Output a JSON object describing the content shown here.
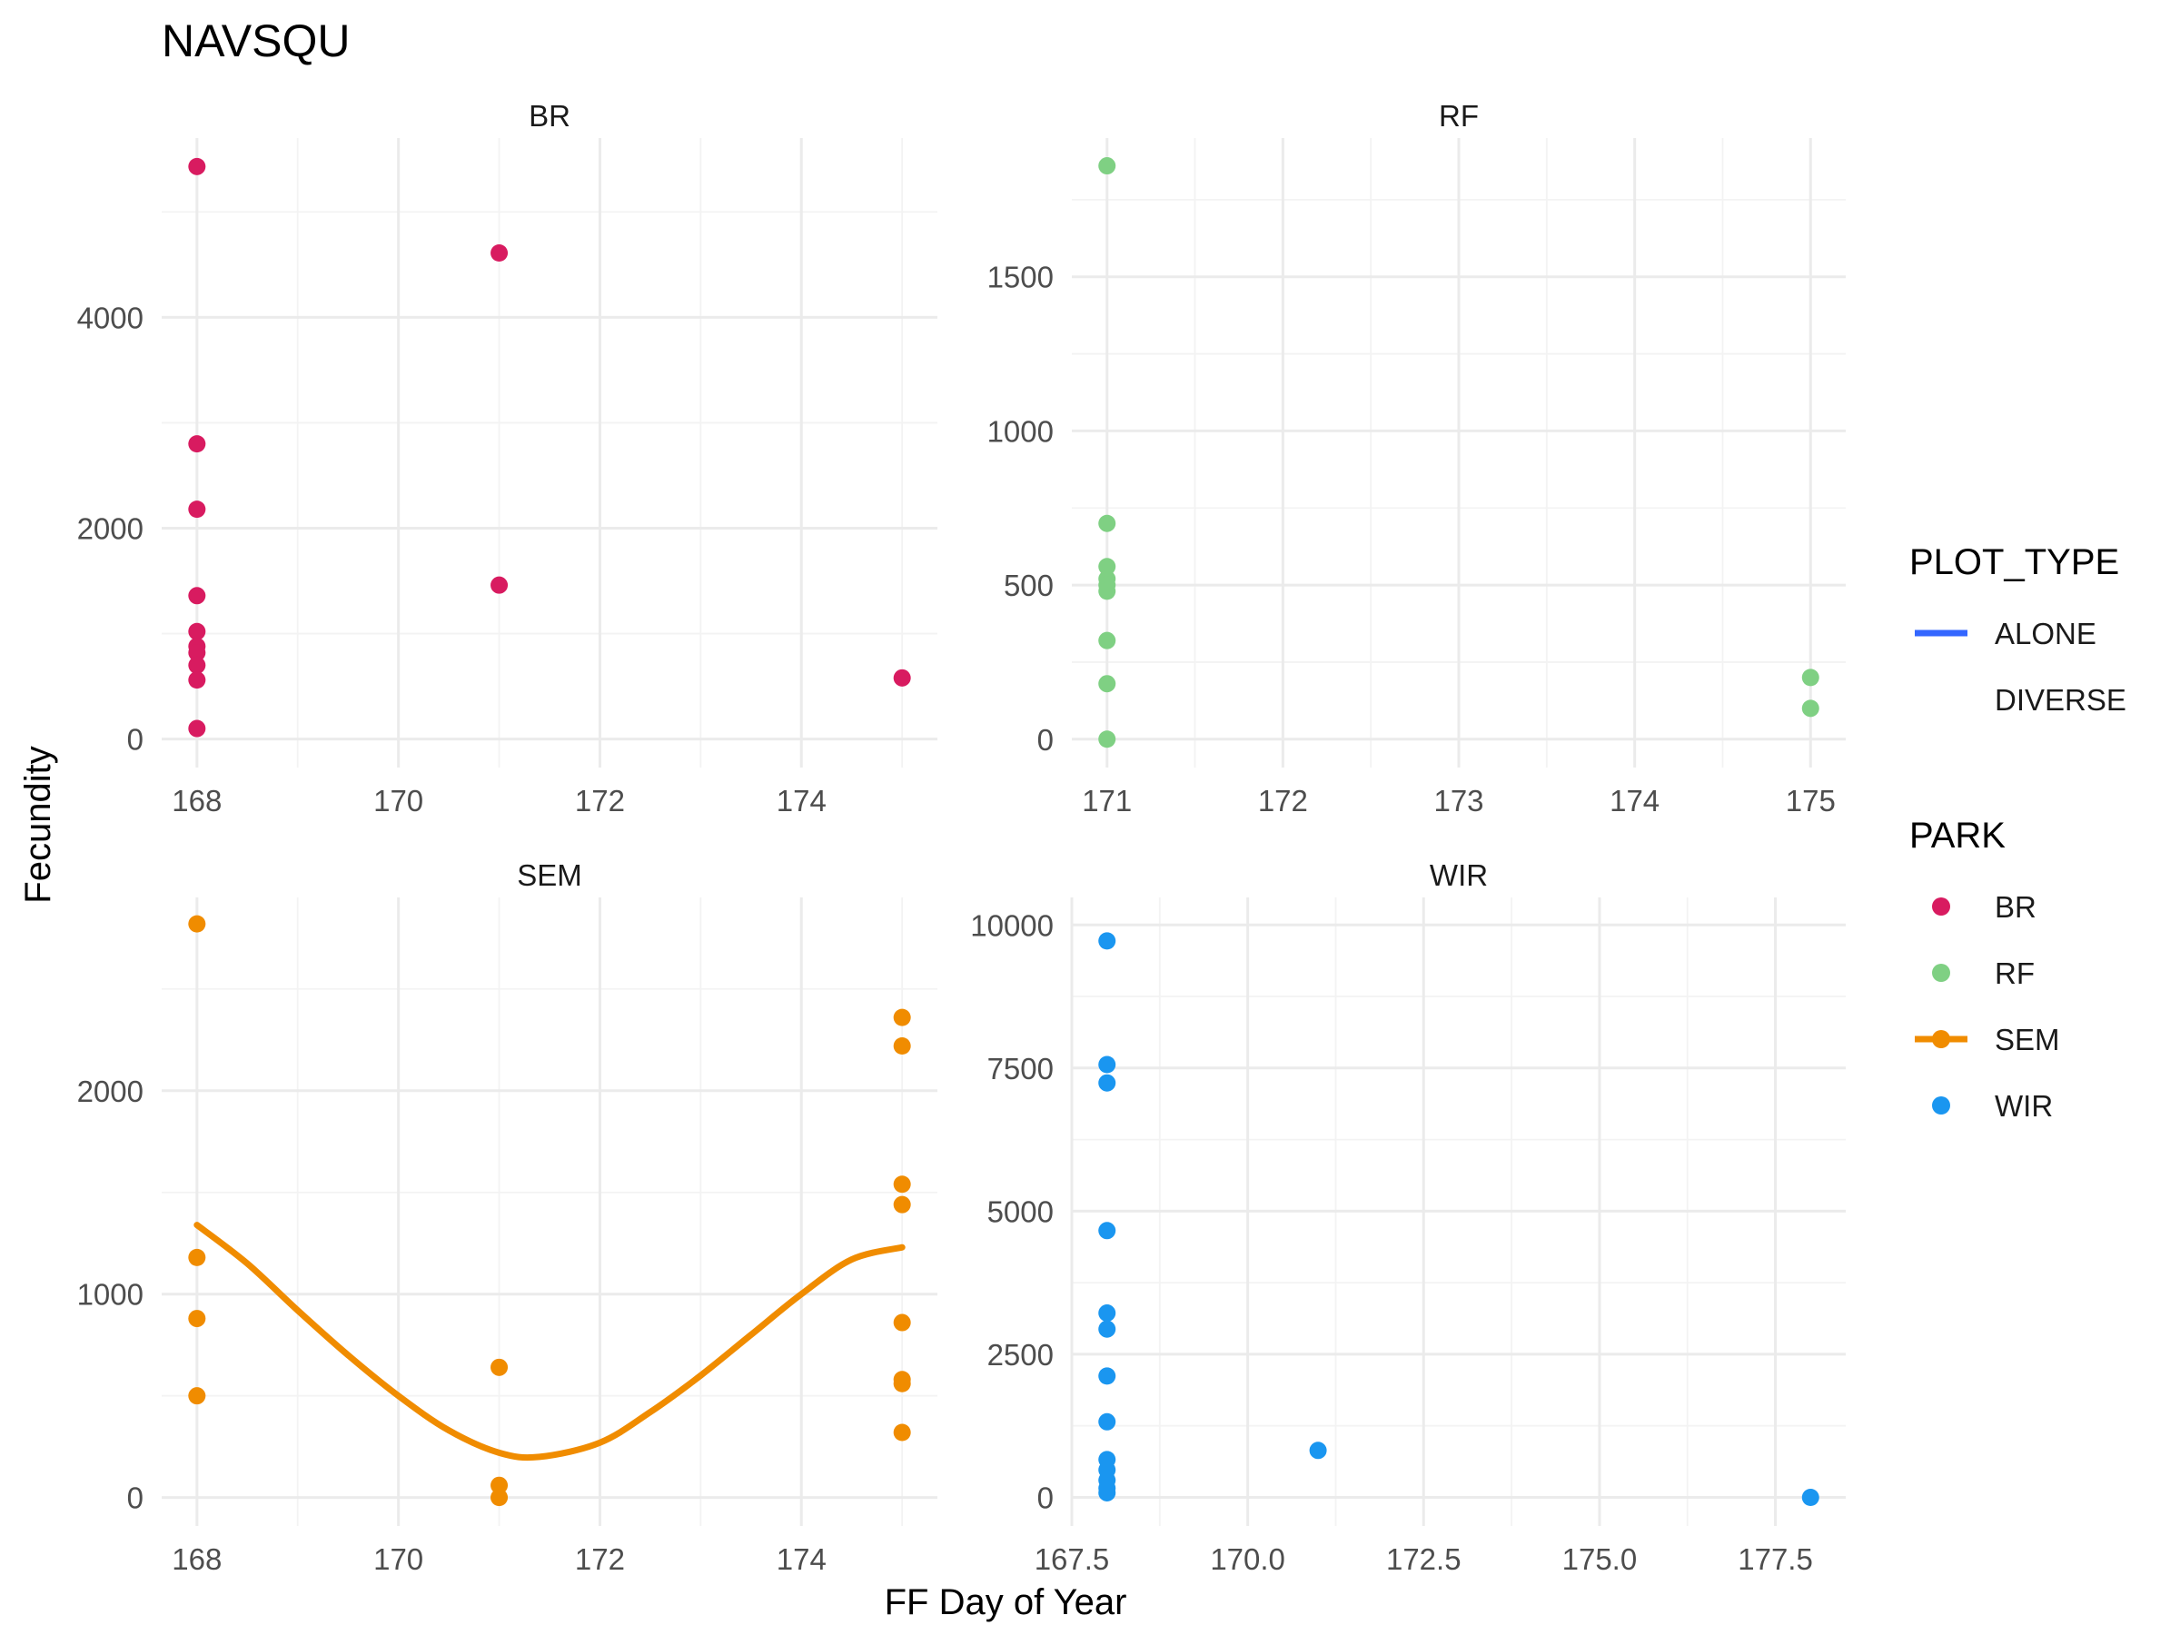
{
  "chart_data": {
    "type": "scatter",
    "title": "NAVSQU",
    "xlabel": "FF Day of Year",
    "ylabel": "Fecundity",
    "grid": true,
    "legend_placement": "right",
    "legends": [
      {
        "title": "PLOT_TYPE",
        "entries": [
          {
            "label": "ALONE",
            "color": "#3366ff",
            "key": "line"
          },
          {
            "label": "DIVERSE",
            "color": "",
            "key": "none"
          }
        ]
      },
      {
        "title": "PARK",
        "entries": [
          {
            "label": "BR",
            "color": "#d81b60",
            "key": "point"
          },
          {
            "label": "RF",
            "color": "#7fd083",
            "key": "point"
          },
          {
            "label": "SEM",
            "color": "#f08c00",
            "key": "point-line"
          },
          {
            "label": "WIR",
            "color": "#1a96f0",
            "key": "point"
          }
        ]
      }
    ],
    "panels": [
      {
        "name": "BR",
        "color": "#d81b60",
        "xlim": [
          167.65,
          175.35
        ],
        "ylim": [
          -270,
          5700
        ],
        "xticks": [
          168,
          170,
          172,
          174
        ],
        "xtick_labels": [
          "168",
          "170",
          "172",
          "174"
        ],
        "yticks": [
          0,
          2000,
          4000
        ],
        "ytick_labels": [
          "0",
          "2000",
          "4000"
        ],
        "points": [
          [
            168,
            5430
          ],
          [
            168,
            2800
          ],
          [
            168,
            2180
          ],
          [
            168,
            1360
          ],
          [
            168,
            1020
          ],
          [
            168,
            880
          ],
          [
            168,
            820
          ],
          [
            168,
            700
          ],
          [
            168,
            560
          ],
          [
            168,
            100
          ],
          [
            171,
            4610
          ],
          [
            171,
            1460
          ],
          [
            175,
            580
          ]
        ]
      },
      {
        "name": "RF",
        "color": "#7fd083",
        "xlim": [
          170.8,
          175.2
        ],
        "ylim": [
          -92,
          1950
        ],
        "xticks": [
          171,
          172,
          173,
          174,
          175
        ],
        "xtick_labels": [
          "171",
          "172",
          "173",
          "174",
          "175"
        ],
        "yticks": [
          0,
          500,
          1000,
          1500
        ],
        "ytick_labels": [
          "0",
          "500",
          "1000",
          "1500"
        ],
        "points": [
          [
            171,
            1860
          ],
          [
            171,
            700
          ],
          [
            171,
            560
          ],
          [
            171,
            520
          ],
          [
            171,
            500
          ],
          [
            171,
            480
          ],
          [
            171,
            320
          ],
          [
            171,
            180
          ],
          [
            171,
            0
          ],
          [
            175,
            200
          ],
          [
            175,
            100
          ]
        ]
      },
      {
        "name": "SEM",
        "color": "#f08c00",
        "xlim": [
          167.65,
          175.35
        ],
        "ylim": [
          -140,
          2950
        ],
        "xticks": [
          168,
          170,
          172,
          174
        ],
        "xtick_labels": [
          "168",
          "170",
          "172",
          "174"
        ],
        "yticks": [
          0,
          1000,
          2000
        ],
        "ytick_labels": [
          "0",
          "1000",
          "2000"
        ],
        "points": [
          [
            168,
            2820
          ],
          [
            168,
            1180
          ],
          [
            168,
            880
          ],
          [
            168,
            500
          ],
          [
            171,
            640
          ],
          [
            171,
            60
          ],
          [
            171,
            0
          ],
          [
            175,
            2360
          ],
          [
            175,
            2220
          ],
          [
            175,
            1540
          ],
          [
            175,
            1440
          ],
          [
            175,
            860
          ],
          [
            175,
            580
          ],
          [
            175,
            560
          ],
          [
            175,
            320
          ]
        ],
        "smooth": [
          [
            168,
            1340
          ],
          [
            168.5,
            1150
          ],
          [
            169,
            920
          ],
          [
            169.5,
            700
          ],
          [
            170,
            500
          ],
          [
            170.5,
            330
          ],
          [
            171,
            220
          ],
          [
            171.4,
            200
          ],
          [
            172,
            270
          ],
          [
            172.5,
            420
          ],
          [
            173,
            600
          ],
          [
            173.5,
            800
          ],
          [
            174,
            1000
          ],
          [
            174.5,
            1170
          ],
          [
            175,
            1230
          ]
        ]
      },
      {
        "name": "WIR",
        "color": "#1a96f0",
        "xlim": [
          167.5,
          178.5
        ],
        "ylim": [
          -500,
          10480
        ],
        "xticks": [
          167.5,
          170,
          172.5,
          175,
          177.5
        ],
        "xtick_labels": [
          "167.5",
          "170.0",
          "172.5",
          "175.0",
          "177.5"
        ],
        "yticks": [
          0,
          2500,
          5000,
          7500,
          10000
        ],
        "ytick_labels": [
          "0",
          "2500",
          "5000",
          "7500",
          "10000"
        ],
        "points": [
          [
            168,
            9720
          ],
          [
            168,
            7560
          ],
          [
            168,
            7240
          ],
          [
            168,
            4660
          ],
          [
            168,
            3220
          ],
          [
            168,
            2940
          ],
          [
            168,
            2120
          ],
          [
            168,
            1320
          ],
          [
            168,
            660
          ],
          [
            168,
            480
          ],
          [
            168,
            300
          ],
          [
            168,
            160
          ],
          [
            168,
            80
          ],
          [
            171,
            820
          ],
          [
            178,
            0
          ]
        ]
      }
    ]
  }
}
